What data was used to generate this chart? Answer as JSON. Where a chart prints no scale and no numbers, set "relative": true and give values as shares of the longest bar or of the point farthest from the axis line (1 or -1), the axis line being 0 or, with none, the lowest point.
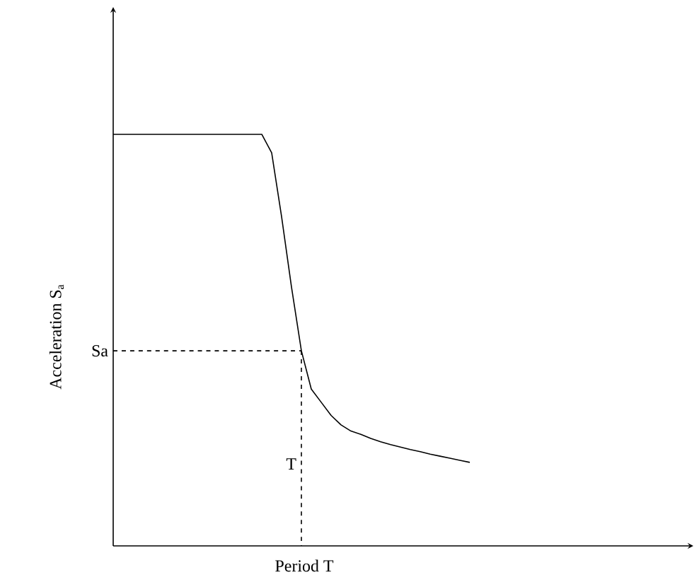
{
  "chart_data": {
    "type": "line",
    "relative": true,
    "xlabel": "Period T",
    "ylabel": "Acceleration  S$_{a}$",
    "categories": [
      null,
      null,
      null,
      null,
      null,
      null,
      null,
      null,
      null,
      null,
      null,
      null,
      null,
      null,
      null,
      null,
      null,
      null,
      null,
      null,
      null,
      null,
      null,
      null,
      null,
      null,
      null,
      null,
      null,
      null,
      null,
      null,
      null,
      null,
      null,
      null,
      null
    ],
    "series": [
      {
        "color": "#000000",
        "values": [
          1,
          1,
          1,
          1,
          1,
          1,
          1,
          1,
          1,
          1,
          1,
          1,
          1,
          1,
          1,
          1,
          0.955,
          0.8,
          0.629,
          0.474,
          0.381,
          0.349,
          0.317,
          0.294,
          0.279,
          0.271,
          0.261,
          0.253,
          0.246,
          0.24,
          0.234,
          0.229,
          0.223,
          0.218,
          0.213,
          0.208,
          0.203
        ]
      }
    ],
    "ref_lines": [
      {
        "axis": "y",
        "value": 0.474,
        "label": "Sa",
        "line_style": "dashed"
      }
    ],
    "annotations": [
      "T"
    ],
    "line_style": "solid",
    "marker": "none"
  }
}
